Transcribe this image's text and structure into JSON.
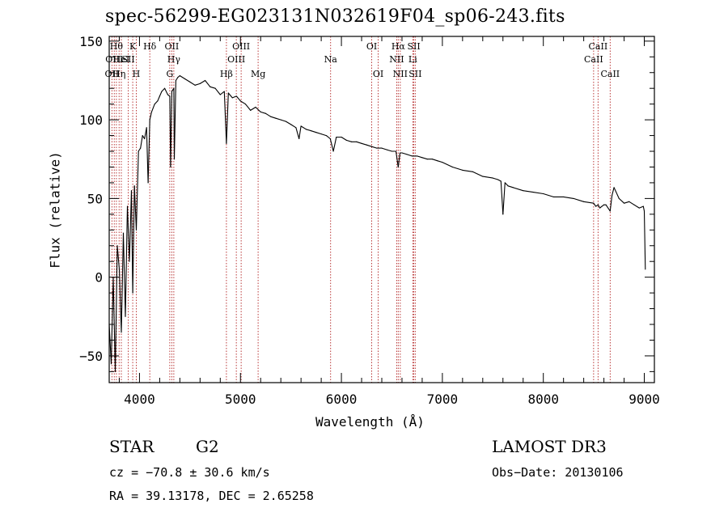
{
  "chart_data": {
    "type": "line",
    "title": "spec-56299-EG023131N032619F04_sp06-243.fits",
    "xlabel": "Wavelength (Å)",
    "ylabel": "Flux (relative)",
    "xlim": [
      3700,
      9100
    ],
    "ylim": [
      -67,
      153
    ],
    "xticks": [
      {
        "v": 4000,
        "label": "4000"
      },
      {
        "v": 5000,
        "label": "5000"
      },
      {
        "v": 6000,
        "label": "6000"
      },
      {
        "v": 7000,
        "label": "7000"
      },
      {
        "v": 8000,
        "label": "8000"
      },
      {
        "v": 9000,
        "label": "9000"
      }
    ],
    "yticks": [
      {
        "v": -50,
        "label": "−50"
      },
      {
        "v": 0,
        "label": "0"
      },
      {
        "v": 50,
        "label": "50"
      },
      {
        "v": 100,
        "label": "100"
      },
      {
        "v": 150,
        "label": "150"
      }
    ],
    "series": [
      {
        "name": "spectrum",
        "x": [
          3700,
          3720,
          3740,
          3760,
          3780,
          3800,
          3820,
          3840,
          3860,
          3880,
          3900,
          3920,
          3933,
          3950,
          3968,
          3990,
          4010,
          4030,
          4050,
          4070,
          4085,
          4102,
          4120,
          4150,
          4180,
          4200,
          4220,
          4250,
          4280,
          4300,
          4308,
          4320,
          4340,
          4345,
          4360,
          4380,
          4400,
          4450,
          4500,
          4550,
          4600,
          4650,
          4700,
          4750,
          4800,
          4840,
          4861,
          4880,
          4920,
          4960,
          5000,
          5050,
          5100,
          5150,
          5200,
          5250,
          5300,
          5350,
          5400,
          5450,
          5500,
          5550,
          5580,
          5600,
          5650,
          5700,
          5750,
          5800,
          5850,
          5890,
          5920,
          5950,
          6000,
          6050,
          6100,
          6150,
          6200,
          6250,
          6300,
          6350,
          6400,
          6450,
          6500,
          6540,
          6563,
          6580,
          6600,
          6650,
          6700,
          6750,
          6800,
          6850,
          6900,
          6950,
          7000,
          7100,
          7200,
          7300,
          7400,
          7500,
          7550,
          7580,
          7600,
          7620,
          7650,
          7700,
          7800,
          7900,
          8000,
          8100,
          8200,
          8300,
          8400,
          8498,
          8520,
          8542,
          8560,
          8580,
          8600,
          8620,
          8662,
          8680,
          8700,
          8750,
          8800,
          8850,
          8900,
          8950,
          8990,
          9000,
          9010
        ],
        "y": [
          -30,
          -55,
          0,
          -60,
          20,
          5,
          -35,
          28,
          -25,
          45,
          10,
          55,
          -10,
          58,
          30,
          80,
          82,
          90,
          88,
          95,
          60,
          100,
          105,
          110,
          112,
          115,
          118,
          120,
          116,
          115,
          70,
          118,
          120,
          75,
          125,
          127,
          128,
          126,
          124,
          122,
          123,
          125,
          121,
          120,
          116,
          118,
          85,
          117,
          114,
          115,
          112,
          110,
          106,
          108,
          105,
          104,
          102,
          101,
          100,
          99,
          97,
          95,
          88,
          96,
          94,
          93,
          92,
          91,
          90,
          88,
          80,
          89,
          89,
          87,
          86,
          86,
          85,
          84,
          83,
          82,
          82,
          81,
          80,
          80,
          70,
          79,
          79,
          78,
          77,
          77,
          76,
          75,
          75,
          74,
          73,
          70,
          68,
          67,
          64,
          63,
          62,
          61,
          40,
          60,
          58,
          57,
          55,
          54,
          53,
          51,
          51,
          50,
          48,
          47,
          45,
          46,
          44,
          45,
          46,
          46,
          42,
          52,
          57,
          50,
          47,
          48,
          46,
          44,
          45,
          42,
          5
        ]
      }
    ],
    "line_marks": [
      {
        "w": 3727,
        "label": "OII",
        "row": 2
      },
      {
        "w": 3750,
        "label": "OIII",
        "row": 1
      },
      {
        "w": 3771,
        "label": "Hθ",
        "row": 0
      },
      {
        "w": 3798,
        "label": "Hη",
        "row": 2
      },
      {
        "w": 3820,
        "label": "HeI",
        "row": 1
      },
      {
        "w": 3889,
        "label": "SII",
        "row": 1
      },
      {
        "w": 3933,
        "label": "K",
        "row": 0
      },
      {
        "w": 3968,
        "label": "H",
        "row": 2
      },
      {
        "w": 4102,
        "label": "Hδ",
        "row": 0
      },
      {
        "w": 4300,
        "label": "G",
        "row": 2
      },
      {
        "w": 4320,
        "label": "OII",
        "row": 0
      },
      {
        "w": 4340,
        "label": "Hγ",
        "row": 1
      },
      {
        "w": 4861,
        "label": "Hβ",
        "row": 2
      },
      {
        "w": 4959,
        "label": "OIII",
        "row": 1
      },
      {
        "w": 5007,
        "label": "OIII",
        "row": 0
      },
      {
        "w": 5175,
        "label": "Mg",
        "row": 2
      },
      {
        "w": 5893,
        "label": "Na",
        "row": 1
      },
      {
        "w": 6300,
        "label": "OI",
        "row": 0
      },
      {
        "w": 6364,
        "label": "OI",
        "row": 2
      },
      {
        "w": 6548,
        "label": "NII",
        "row": 1
      },
      {
        "w": 6563,
        "label": "Hα",
        "row": 0
      },
      {
        "w": 6583,
        "label": "NII",
        "row": 2
      },
      {
        "w": 6707,
        "label": "Li",
        "row": 1
      },
      {
        "w": 6717,
        "label": "SII",
        "row": 0
      },
      {
        "w": 6731,
        "label": "SII",
        "row": 2
      },
      {
        "w": 8498,
        "label": "CaII",
        "row": 1
      },
      {
        "w": 8542,
        "label": "CaII",
        "row": 0
      },
      {
        "w": 8662,
        "label": "CaII",
        "row": 2
      }
    ]
  },
  "info": {
    "object_class": "STAR",
    "subclass": "G2",
    "survey": "LAMOST DR3",
    "cz": "cz = −70.8 ± 30.6 km/s",
    "obs_date": "Obs−Date: 20130106",
    "coords": "RA =  39.13178, DEC =   2.65258"
  },
  "colors": {
    "line_marker": "#b22222",
    "spectrum": "#000000",
    "axes": "#000000"
  }
}
